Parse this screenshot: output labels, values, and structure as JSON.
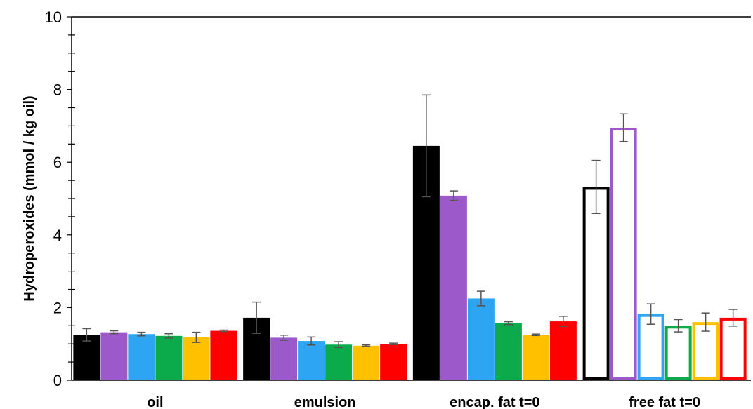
{
  "chart_data": {
    "type": "bar",
    "title": "",
    "xlabel": "",
    "ylabel": "Hydroperoxides (mmol / kg oil)",
    "ylim": [
      0,
      10
    ],
    "yticks": [
      "0",
      "2",
      "4",
      "6",
      "8",
      "10"
    ],
    "grid": false,
    "legend": "none",
    "categories": [
      "oil",
      "emulsion",
      "encap. fat t=0",
      "free fat t=0"
    ],
    "series": [
      {
        "color": "#000000",
        "values": [
          1.25,
          1.72,
          6.45,
          5.32
        ],
        "errors": [
          0.17,
          0.43,
          1.4,
          0.73
        ],
        "hollow": [
          false,
          false,
          false,
          true
        ]
      },
      {
        "color": "#9B59C9",
        "values": [
          1.32,
          1.17,
          5.08,
          6.95
        ],
        "errors": [
          0.04,
          0.07,
          0.13,
          0.38
        ],
        "hollow": [
          false,
          false,
          false,
          true
        ]
      },
      {
        "color": "#2EA5F2",
        "values": [
          1.27,
          1.08,
          2.25,
          1.82
        ],
        "errors": [
          0.05,
          0.11,
          0.2,
          0.28
        ],
        "hollow": [
          false,
          false,
          false,
          true
        ]
      },
      {
        "color": "#0BAA4B",
        "values": [
          1.22,
          0.98,
          1.57,
          1.5
        ],
        "errors": [
          0.06,
          0.08,
          0.04,
          0.17
        ],
        "hollow": [
          false,
          false,
          false,
          true
        ]
      },
      {
        "color": "#FFC000",
        "values": [
          1.18,
          0.95,
          1.25,
          1.6
        ],
        "errors": [
          0.14,
          0.02,
          0.02,
          0.25
        ],
        "hollow": [
          false,
          false,
          false,
          true
        ]
      },
      {
        "color": "#FF0000",
        "values": [
          1.36,
          1.0,
          1.62,
          1.72
        ],
        "errors": [
          0.02,
          0.02,
          0.14,
          0.23
        ],
        "hollow": [
          false,
          false,
          false,
          true
        ]
      }
    ]
  }
}
